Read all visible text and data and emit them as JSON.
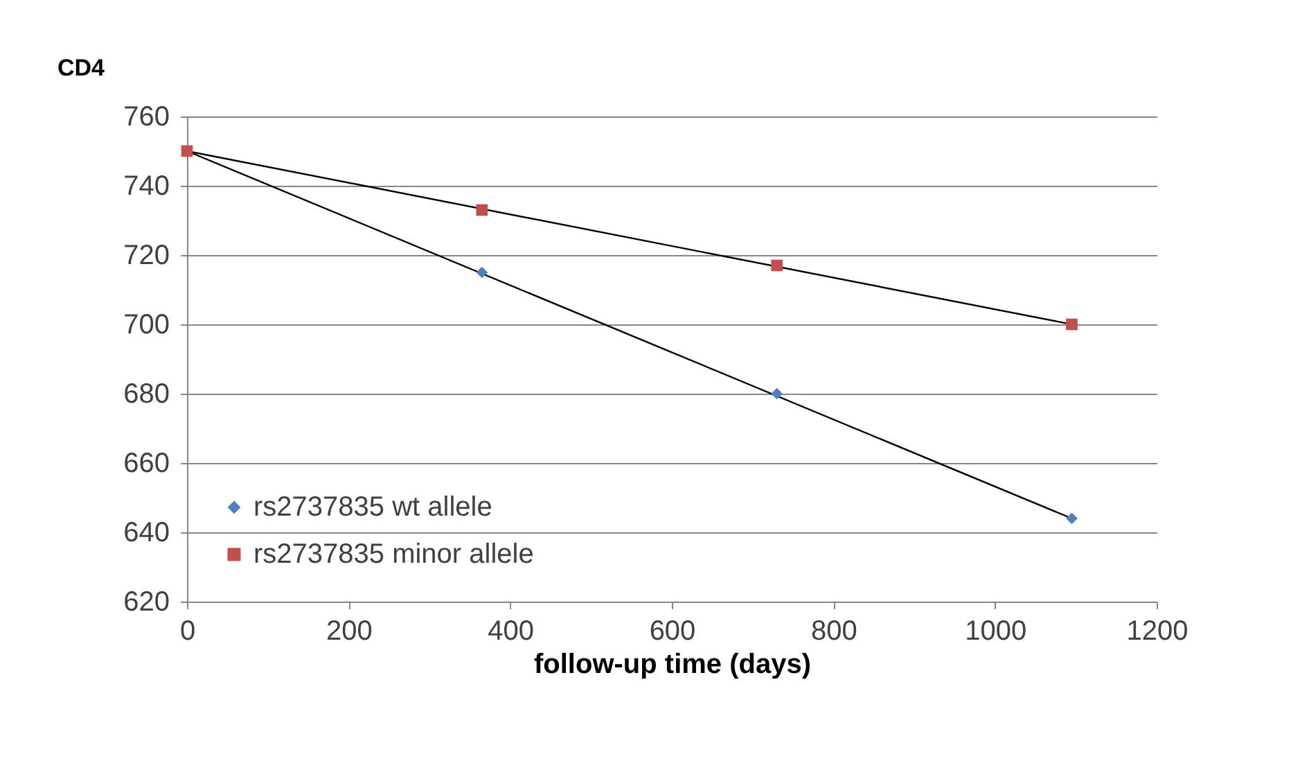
{
  "chart_data": {
    "type": "scatter",
    "xlabel": "follow-up time (days)",
    "ylabel": "CD4",
    "xlim": [
      0,
      1200
    ],
    "xticks": [
      0,
      200,
      400,
      600,
      800,
      1000,
      1200
    ],
    "ylim": [
      620,
      760
    ],
    "yticks": [
      620,
      640,
      660,
      680,
      700,
      720,
      740,
      760
    ],
    "grid": "y",
    "legend": "bottom left",
    "series": [
      {
        "type": "line",
        "color": "#000000",
        "x": [
          0,
          1095
        ],
        "values": [
          750,
          644
        ],
        "marker": "none"
      },
      {
        "type": "line",
        "color": "#000000",
        "x": [
          0,
          1095
        ],
        "values": [
          750,
          700
        ],
        "marker": "none"
      },
      {
        "name": "rs2737835 wt allele",
        "color": "#4f81bd",
        "x": [
          365,
          730,
          1095
        ],
        "values": [
          715,
          680,
          644
        ],
        "marker": "diamond"
      },
      {
        "name": "rs2737835 minor allele",
        "color": "#c0504d",
        "x": [
          0,
          365,
          730,
          1095
        ],
        "values": [
          750,
          733,
          717,
          700
        ],
        "marker": "square"
      }
    ]
  }
}
